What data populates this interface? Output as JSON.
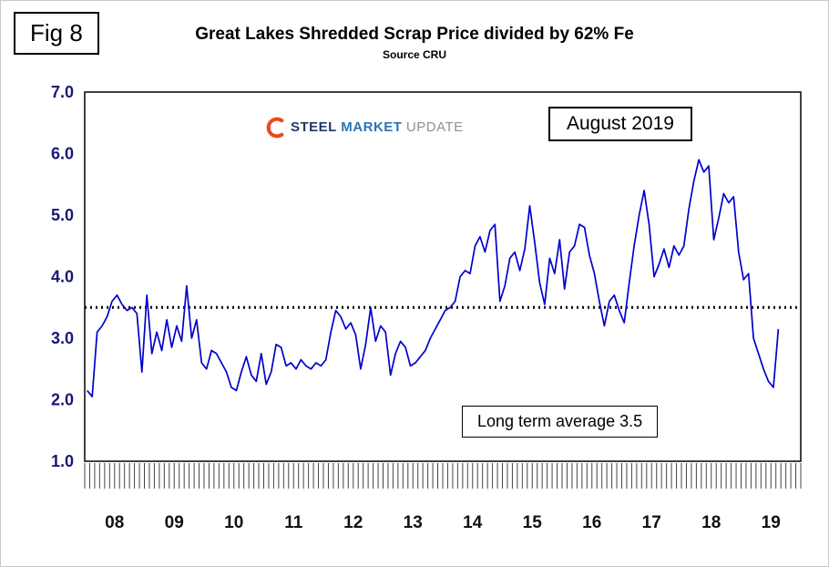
{
  "figure": {
    "label": "Fig 8"
  },
  "header": {
    "title": "Great Lakes Shredded Scrap Price divided by 62% Fe",
    "subtitle": "Source CRU"
  },
  "logo": {
    "word1": "STEEL",
    "word2": "MARKET",
    "word3": "UPDATE",
    "swoosh_color": "#e8491d"
  },
  "annotations": {
    "date_box": "August 2019",
    "average_box": "Long term average 3.5"
  },
  "chart_data": {
    "type": "line",
    "title": "Great Lakes Shredded Scrap Price divided by 62% Fe",
    "subtitle": "Source CRU",
    "ylim": [
      1.0,
      7.0
    ],
    "ytick_labels": [
      "7.0",
      "6.0",
      "5.0",
      "4.0",
      "3.0",
      "2.0",
      "1.0"
    ],
    "ytick_values": [
      7,
      6,
      5,
      4,
      3,
      2,
      1
    ],
    "x_year_labels": [
      "08",
      "09",
      "10",
      "11",
      "12",
      "13",
      "14",
      "15",
      "16",
      "17",
      "18",
      "19"
    ],
    "x_range_years": [
      2008,
      2020
    ],
    "grid": false,
    "legend": "none",
    "long_term_average": 3.5,
    "line_color": "#0000cc",
    "average_line_color": "#000000",
    "y_label_color": "#181878",
    "x_label_color": "#111111",
    "series": [
      {
        "name": "Shredded Scrap Price divided by 62% Fe",
        "start_year": 2008,
        "start_month": 1,
        "frequency": "monthly",
        "values": [
          2.15,
          2.05,
          3.1,
          3.2,
          3.35,
          3.6,
          3.7,
          3.55,
          3.45,
          3.5,
          3.4,
          2.45,
          3.7,
          2.75,
          3.1,
          2.8,
          3.3,
          2.85,
          3.2,
          2.95,
          3.85,
          3.0,
          3.3,
          2.6,
          2.5,
          2.8,
          2.75,
          2.6,
          2.45,
          2.2,
          2.15,
          2.45,
          2.7,
          2.4,
          2.3,
          2.75,
          2.25,
          2.45,
          2.9,
          2.85,
          2.55,
          2.6,
          2.5,
          2.65,
          2.55,
          2.5,
          2.6,
          2.55,
          2.65,
          3.1,
          3.45,
          3.35,
          3.15,
          3.25,
          3.05,
          2.5,
          2.9,
          3.5,
          2.95,
          3.2,
          3.1,
          2.4,
          2.75,
          2.95,
          2.85,
          2.55,
          2.6,
          2.7,
          2.8,
          3.0,
          3.15,
          3.3,
          3.45,
          3.5,
          3.6,
          4.0,
          4.1,
          4.05,
          4.5,
          4.65,
          4.4,
          4.75,
          4.85,
          3.6,
          3.85,
          4.3,
          4.4,
          4.1,
          4.45,
          5.15,
          4.55,
          3.9,
          3.55,
          4.3,
          4.05,
          4.6,
          3.8,
          4.4,
          4.5,
          4.85,
          4.8,
          4.35,
          4.05,
          3.6,
          3.2,
          3.6,
          3.7,
          3.45,
          3.25,
          3.9,
          4.5,
          5.0,
          5.4,
          4.85,
          4.0,
          4.2,
          4.45,
          4.15,
          4.5,
          4.35,
          4.5,
          5.1,
          5.55,
          5.9,
          5.7,
          5.8,
          4.6,
          4.95,
          5.35,
          5.2,
          5.3,
          4.4,
          3.95,
          4.05,
          3.0,
          2.75,
          2.5,
          2.3,
          2.2,
          3.15
        ]
      }
    ]
  }
}
